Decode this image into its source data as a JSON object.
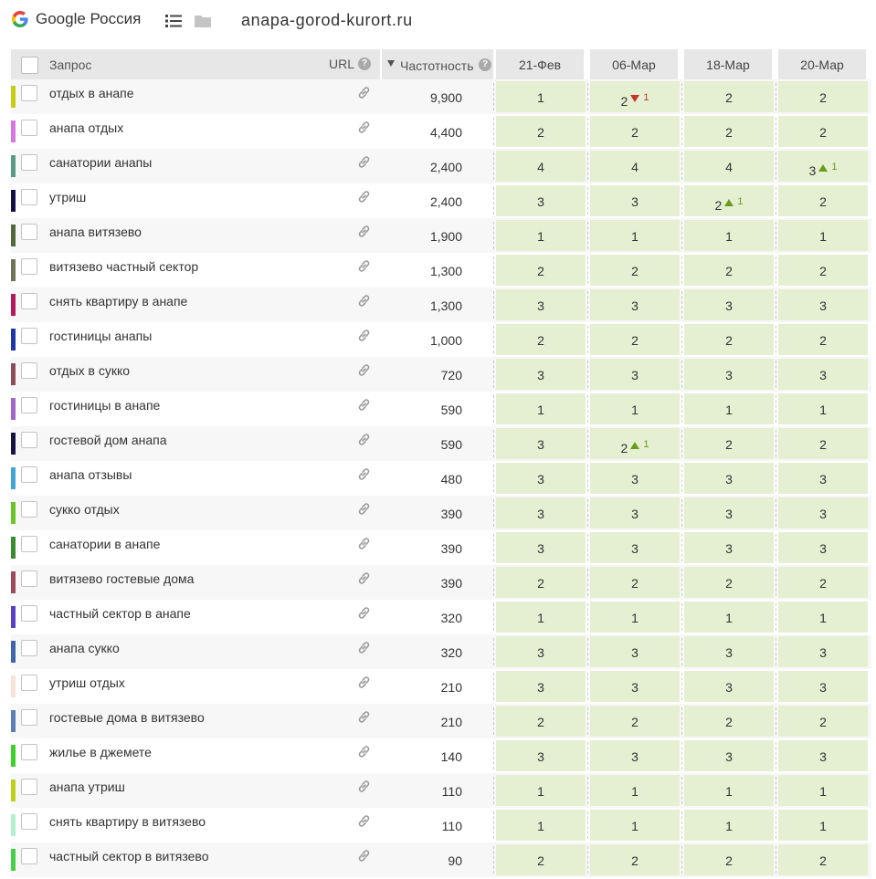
{
  "header": {
    "engine": "Google Россия",
    "site": "anapa-gorod-kurort.ru"
  },
  "table": {
    "columns": {
      "query": "Запрос",
      "url": "URL",
      "frequency": "Частотность",
      "help": "?",
      "dates": [
        "21-Фев",
        "06-Мар",
        "18-Мар",
        "20-Мар"
      ]
    },
    "rows": [
      {
        "query": "отдых в анапе",
        "freq": "9,900",
        "color": "#c6cf12",
        "positions": [
          "1",
          "2",
          "2",
          "2"
        ],
        "deltas": [
          null,
          {
            "dir": "down",
            "value": "1"
          },
          null,
          null
        ]
      },
      {
        "query": "анапа отдых",
        "freq": "4,400",
        "color": "#d977e2",
        "positions": [
          "2",
          "2",
          "2",
          "2"
        ],
        "deltas": [
          null,
          null,
          null,
          null
        ]
      },
      {
        "query": "санатории анапы",
        "freq": "2,400",
        "color": "#5b9a86",
        "positions": [
          "4",
          "4",
          "4",
          "3"
        ],
        "deltas": [
          null,
          null,
          null,
          {
            "dir": "up",
            "value": "1"
          }
        ]
      },
      {
        "query": "утриш",
        "freq": "2,400",
        "color": "#141047",
        "positions": [
          "3",
          "3",
          "2",
          "2"
        ],
        "deltas": [
          null,
          null,
          {
            "dir": "up",
            "value": "1"
          },
          null
        ]
      },
      {
        "query": "анапа витязево",
        "freq": "1,900",
        "color": "#4d6b3b",
        "positions": [
          "1",
          "1",
          "1",
          "1"
        ],
        "deltas": [
          null,
          null,
          null,
          null
        ]
      },
      {
        "query": "витязево частный сектор",
        "freq": "1,300",
        "color": "#6b7456",
        "positions": [
          "2",
          "2",
          "2",
          "2"
        ],
        "deltas": [
          null,
          null,
          null,
          null
        ]
      },
      {
        "query": "снять квартиру в анапе",
        "freq": "1,300",
        "color": "#b5185d",
        "positions": [
          "3",
          "3",
          "3",
          "3"
        ],
        "deltas": [
          null,
          null,
          null,
          null
        ]
      },
      {
        "query": "гостиницы анапы",
        "freq": "1,000",
        "color": "#1c37a6",
        "positions": [
          "2",
          "2",
          "2",
          "2"
        ],
        "deltas": [
          null,
          null,
          null,
          null
        ]
      },
      {
        "query": "отдых в сукко",
        "freq": "720",
        "color": "#8d4d58",
        "positions": [
          "3",
          "3",
          "3",
          "3"
        ],
        "deltas": [
          null,
          null,
          null,
          null
        ]
      },
      {
        "query": "гостиницы в анапе",
        "freq": "590",
        "color": "#a366c9",
        "positions": [
          "1",
          "1",
          "1",
          "1"
        ],
        "deltas": [
          null,
          null,
          null,
          null
        ]
      },
      {
        "query": "гостевой дом анапа",
        "freq": "590",
        "color": "#161444",
        "positions": [
          "3",
          "2",
          "2",
          "2"
        ],
        "deltas": [
          null,
          {
            "dir": "up",
            "value": "1"
          },
          null,
          null
        ]
      },
      {
        "query": "анапа отзывы",
        "freq": "480",
        "color": "#43a5d3",
        "positions": [
          "3",
          "3",
          "3",
          "3"
        ],
        "deltas": [
          null,
          null,
          null,
          null
        ]
      },
      {
        "query": "сукко отдых",
        "freq": "390",
        "color": "#6ac626",
        "positions": [
          "3",
          "3",
          "3",
          "3"
        ],
        "deltas": [
          null,
          null,
          null,
          null
        ]
      },
      {
        "query": "санатории в анапе",
        "freq": "390",
        "color": "#3a8d2e",
        "positions": [
          "3",
          "3",
          "3",
          "3"
        ],
        "deltas": [
          null,
          null,
          null,
          null
        ]
      },
      {
        "query": "витязево гостевые дома",
        "freq": "390",
        "color": "#9a4a5b",
        "positions": [
          "2",
          "2",
          "2",
          "2"
        ],
        "deltas": [
          null,
          null,
          null,
          null
        ]
      },
      {
        "query": "частный сектор в анапе",
        "freq": "320",
        "color": "#5a3fc9",
        "positions": [
          "1",
          "1",
          "1",
          "1"
        ],
        "deltas": [
          null,
          null,
          null,
          null
        ]
      },
      {
        "query": "анапа сукко",
        "freq": "320",
        "color": "#3e66a8",
        "positions": [
          "3",
          "3",
          "3",
          "3"
        ],
        "deltas": [
          null,
          null,
          null,
          null
        ]
      },
      {
        "query": "утриш отдых",
        "freq": "210",
        "color": "#f7e3d8",
        "positions": [
          "3",
          "3",
          "3",
          "3"
        ],
        "deltas": [
          null,
          null,
          null,
          null
        ]
      },
      {
        "query": "гостевые дома в витязево",
        "freq": "210",
        "color": "#5c7fb5",
        "positions": [
          "2",
          "2",
          "2",
          "2"
        ],
        "deltas": [
          null,
          null,
          null,
          null
        ]
      },
      {
        "query": "жилье в джемете",
        "freq": "140",
        "color": "#3ed12c",
        "positions": [
          "3",
          "3",
          "3",
          "3"
        ],
        "deltas": [
          null,
          null,
          null,
          null
        ]
      },
      {
        "query": "анапа утриш",
        "freq": "110",
        "color": "#bcd11a",
        "positions": [
          "1",
          "1",
          "1",
          "1"
        ],
        "deltas": [
          null,
          null,
          null,
          null
        ]
      },
      {
        "query": "снять квартиру в витязево",
        "freq": "110",
        "color": "#b3f0cb",
        "positions": [
          "1",
          "1",
          "1",
          "1"
        ],
        "deltas": [
          null,
          null,
          null,
          null
        ]
      },
      {
        "query": "частный сектор в витязево",
        "freq": "90",
        "color": "#47d04a",
        "positions": [
          "2",
          "2",
          "2",
          "2"
        ],
        "deltas": [
          null,
          null,
          null,
          null
        ]
      }
    ]
  }
}
